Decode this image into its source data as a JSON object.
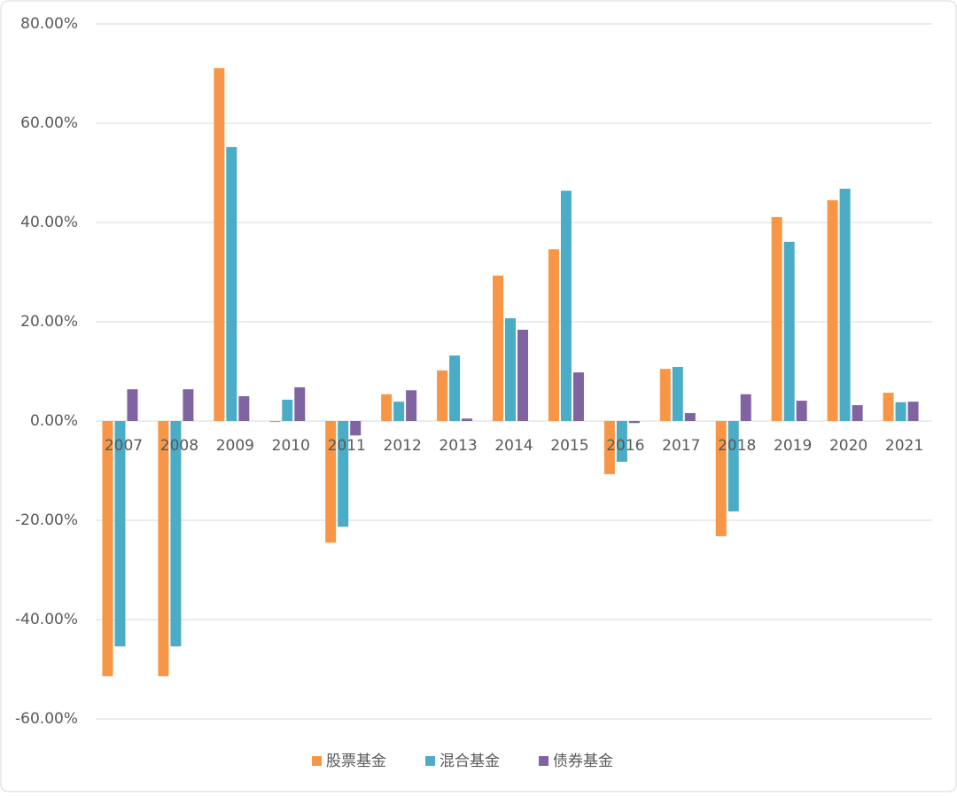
{
  "chart_data": {
    "type": "bar",
    "categories": [
      "2007",
      "2008",
      "2009",
      "2010",
      "2011",
      "2012",
      "2013",
      "2014",
      "2015",
      "2016",
      "2017",
      "2018",
      "2019",
      "2020",
      "2021"
    ],
    "series": [
      {
        "name": "股票基金",
        "color": "#f79646",
        "values": [
          -51.4,
          -51.4,
          71.1,
          -0.2,
          -24.5,
          5.4,
          10.2,
          29.3,
          34.6,
          -10.7,
          10.5,
          -23.2,
          41.1,
          44.5,
          5.7
        ]
      },
      {
        "name": "混合基金",
        "color": "#4bacc6",
        "values": [
          -45.4,
          -45.4,
          55.2,
          4.3,
          -21.3,
          3.9,
          13.2,
          20.7,
          46.4,
          -8.2,
          10.9,
          -18.2,
          36.1,
          46.8,
          3.8
        ]
      },
      {
        "name": "债券基金",
        "color": "#8064a2",
        "values": [
          6.4,
          6.4,
          5.0,
          6.8,
          -2.9,
          6.2,
          0.5,
          18.4,
          9.8,
          -0.4,
          1.6,
          5.4,
          4.1,
          3.2,
          3.9
        ]
      }
    ],
    "ylim": [
      -60,
      80
    ],
    "yticks": [
      {
        "value": -60,
        "label": "-60.00%"
      },
      {
        "value": -40,
        "label": "-40.00%"
      },
      {
        "value": -20,
        "label": "-20.00%"
      },
      {
        "value": 0,
        "label": "0.00%"
      },
      {
        "value": 20,
        "label": "20.00%"
      },
      {
        "value": 40,
        "label": "40.00%"
      },
      {
        "value": 60,
        "label": "60.00%"
      },
      {
        "value": 80,
        "label": "80.00%"
      }
    ],
    "grid": true
  }
}
